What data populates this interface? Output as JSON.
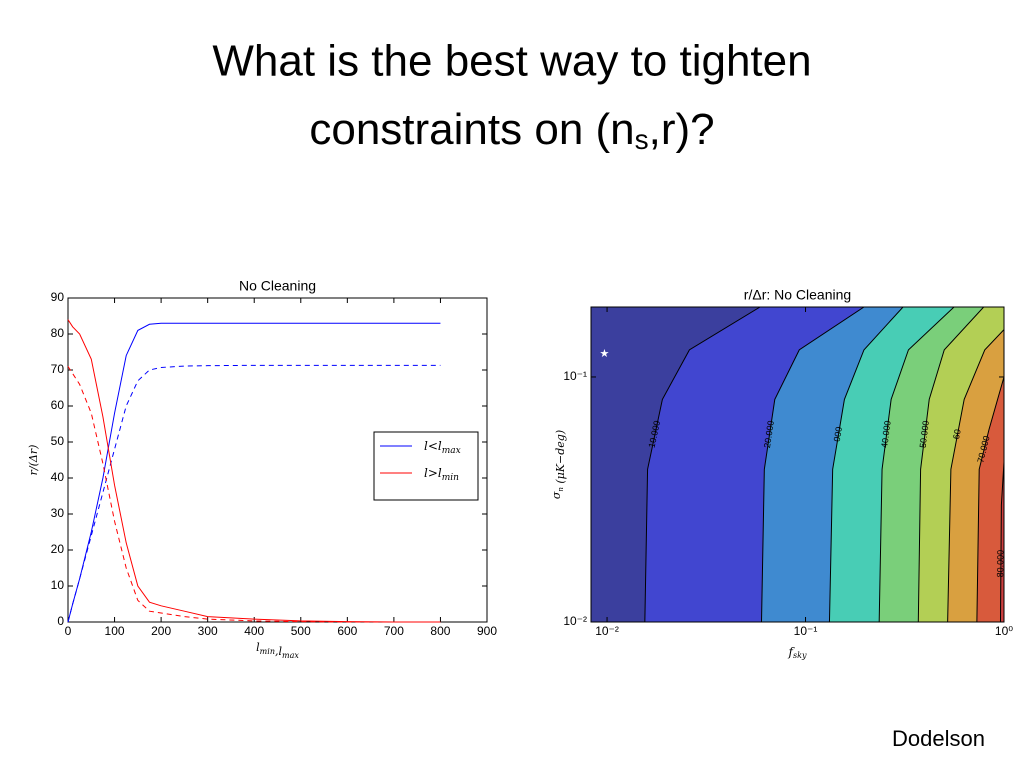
{
  "slide": {
    "title_line1": "What is the best way to tighten",
    "title_line2": [
      "constraints on (n",
      "s",
      ",r)?"
    ],
    "footer": "Dodelson"
  },
  "chart_data": [
    {
      "type": "line",
      "title": "No Cleaning",
      "x_label": [
        {
          "text": "l",
          "sub": "min"
        },
        {
          "text": ",l",
          "sub": "max"
        }
      ],
      "y_label": "r/(Δr)",
      "x": [
        0,
        10,
        25,
        50,
        75,
        100,
        125,
        150,
        175,
        200,
        250,
        300,
        400,
        500,
        600,
        700,
        800
      ],
      "xlim": [
        0,
        900
      ],
      "xticks": [
        0,
        100,
        200,
        300,
        400,
        500,
        600,
        700,
        800,
        900
      ],
      "ylim": [
        0,
        90
      ],
      "yticks": [
        0,
        10,
        20,
        30,
        40,
        50,
        60,
        70,
        80,
        90
      ],
      "legend": "right",
      "series": [
        {
          "name": "l<l",
          "name_sub": "max",
          "color": "#0000ff",
          "values": [
            0,
            5,
            12,
            25,
            40,
            58,
            74,
            81,
            82.7,
            83,
            83,
            83,
            83,
            83,
            83,
            83,
            83
          ]
        },
        {
          "color": "#0000ff",
          "dash": true,
          "values": [
            0,
            5,
            12,
            24,
            36,
            48,
            60,
            67,
            70,
            70.7,
            71.1,
            71.2,
            71.3,
            71.3,
            71.3,
            71.3,
            71.3
          ]
        },
        {
          "name": "l>l",
          "name_sub": "min",
          "color": "#ff0000",
          "values": [
            84,
            82,
            80,
            73,
            57,
            38,
            22,
            10,
            5.5,
            4.5,
            3,
            1.5,
            0.8,
            0.3,
            0.1,
            0,
            0
          ]
        },
        {
          "color": "#ff0000",
          "dash": true,
          "values": [
            71,
            69,
            66,
            58,
            44,
            28,
            15,
            6,
            3,
            2.5,
            1.5,
            0.8,
            0.3,
            0.1,
            0,
            0,
            0
          ]
        }
      ]
    },
    {
      "type": "contour",
      "title": "r/Δr: No Cleaning",
      "x_label": {
        "text": "f",
        "sub": "sky"
      },
      "y_label": {
        "text": "σ",
        "sub": "n",
        "rest": " (μK−deg)"
      },
      "xscale": "log",
      "yscale": "log",
      "xlim": [
        0.0083,
        1
      ],
      "ylim": [
        0.01,
        0.193
      ],
      "xticks": [
        {
          "value": 0.01,
          "label": "10⁻²"
        },
        {
          "value": 0.1,
          "label": "10⁻¹"
        },
        {
          "value": 1,
          "label": "10⁰"
        }
      ],
      "yticks": [
        {
          "value": 0.01,
          "label": "10⁻²"
        },
        {
          "value": 0.1,
          "label": "10⁻¹"
        }
      ],
      "base_color": "#3b3f9e",
      "contours": [
        {
          "level": 10000,
          "label": "10.000",
          "color": "#4146d0",
          "x": [
            0.0155,
            0.016,
            0.019,
            0.026,
            0.059
          ],
          "y": [
            0.01,
            0.042,
            0.081,
            0.129,
            0.193
          ]
        },
        {
          "level": 20000,
          "label": "20.000",
          "color": "#3f8ad0",
          "x": [
            0.06,
            0.062,
            0.07,
            0.093,
            0.197
          ],
          "y": [
            0.01,
            0.042,
            0.081,
            0.129,
            0.193
          ]
        },
        {
          "level": 30000,
          "label": "000",
          "color": "#48cdb5",
          "x": [
            0.132,
            0.137,
            0.157,
            0.197,
            0.31
          ],
          "y": [
            0.01,
            0.042,
            0.081,
            0.129,
            0.193
          ]
        },
        {
          "level": 40000,
          "label": "40.000",
          "color": "#7acf7a",
          "x": [
            0.235,
            0.243,
            0.27,
            0.33,
            0.56
          ],
          "y": [
            0.01,
            0.042,
            0.081,
            0.129,
            0.193
          ]
        },
        {
          "level": 50000,
          "label": "50.000",
          "color": "#b3cf55",
          "x": [
            0.37,
            0.38,
            0.42,
            0.5,
            0.79
          ],
          "y": [
            0.01,
            0.042,
            0.081,
            0.129,
            0.193
          ]
        },
        {
          "level": 60000,
          "label": "60",
          "color": "#d9a040",
          "x": [
            0.52,
            0.54,
            0.63,
            0.8,
            1
          ],
          "y": [
            0.01,
            0.042,
            0.081,
            0.129,
            0.156
          ]
        },
        {
          "level": 70000,
          "label": "70.000",
          "color": "#d85a3c",
          "x": [
            0.73,
            0.75,
            0.84,
            1
          ],
          "y": [
            0.01,
            0.042,
            0.061,
            0.1
          ]
        },
        {
          "level": 80000,
          "label": "80.000",
          "color": "#cc3f3f",
          "x": [
            0.96,
            0.97,
            1
          ],
          "y": [
            0.01,
            0.03,
            0.045
          ]
        }
      ],
      "marker": {
        "x": 0.0097,
        "y": 0.124,
        "color": "#ffffff"
      }
    }
  ]
}
